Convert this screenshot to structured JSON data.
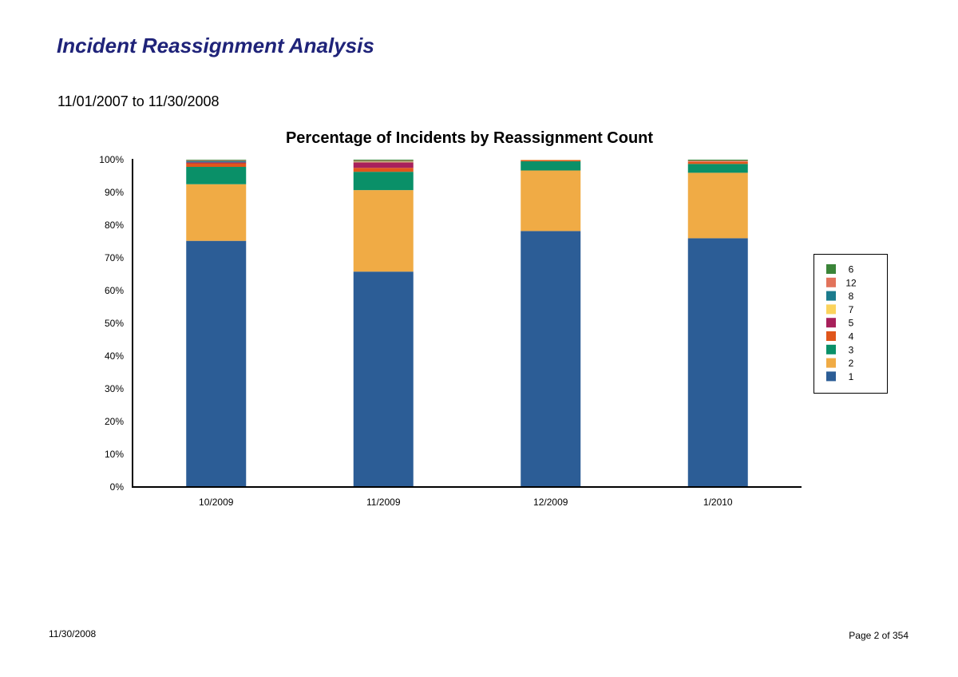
{
  "report": {
    "title": "Incident Reassignment Analysis",
    "date_range": "11/01/2007 to 11/30/2008"
  },
  "footer": {
    "date": "11/30/2008",
    "page": "Page 2 of 354"
  },
  "chart_data": {
    "type": "bar",
    "stacked": true,
    "title": "Percentage of Incidents by Reassignment Count",
    "xlabel": "",
    "ylabel": "",
    "ylim": [
      0,
      100
    ],
    "y_ticks": [
      "0%",
      "10%",
      "20%",
      "30%",
      "40%",
      "50%",
      "60%",
      "70%",
      "80%",
      "90%",
      "100%"
    ],
    "categories": [
      "10/2009",
      "11/2009",
      "12/2009",
      "1/2010"
    ],
    "legend_position": "right",
    "series": [
      {
        "name": "1",
        "color": "#2c5d96",
        "values": [
          75.2,
          65.8,
          78.2,
          76.0
        ]
      },
      {
        "name": "2",
        "color": "#f0ab45",
        "values": [
          17.3,
          24.9,
          18.5,
          20.0
        ]
      },
      {
        "name": "3",
        "color": "#0a9068",
        "values": [
          5.3,
          5.6,
          2.8,
          2.7
        ]
      },
      {
        "name": "4",
        "color": "#e0561b",
        "values": [
          1.1,
          1.2,
          0.3,
          0.6
        ]
      },
      {
        "name": "5",
        "color": "#a8205b",
        "values": [
          0.3,
          1.7,
          0.0,
          0.0
        ]
      },
      {
        "name": "7",
        "color": "#fbd35c",
        "values": [
          0.0,
          0.2,
          0.1,
          0.0
        ]
      },
      {
        "name": "8",
        "color": "#1b7b8d",
        "values": [
          0.4,
          0.1,
          0.0,
          0.0
        ]
      },
      {
        "name": "12",
        "color": "#e2735b",
        "values": [
          0.2,
          0.2,
          0.1,
          0.4
        ]
      },
      {
        "name": "6",
        "color": "#3a8438",
        "values": [
          0.2,
          0.3,
          0.0,
          0.3
        ]
      }
    ],
    "legend_order": [
      "6",
      "12",
      "8",
      "7",
      "5",
      "4",
      "3",
      "2",
      "1"
    ]
  }
}
